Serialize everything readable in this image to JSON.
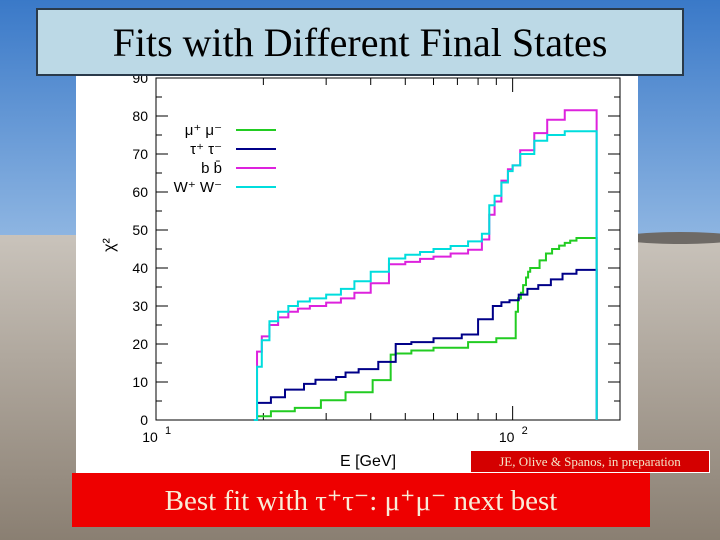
{
  "slide": {
    "title": "Fits with Different Final States",
    "credit": "JE, Olive & Spanos, in preparation",
    "caption": "Best fit with τ⁺τ⁻: μ⁺μ⁻ next best"
  },
  "colors": {
    "green": "#22cc22",
    "blue": "#000088",
    "magenta": "#dd22dd",
    "cyan": "#00dddd",
    "caption_bg": "#ee0000",
    "title_bg": "#bcd9e6"
  },
  "chart_data": {
    "type": "line",
    "xlabel": "E [GeV]",
    "ylabel": "χ²",
    "x_scale": "log",
    "xlim": [
      10,
      200
    ],
    "ylim": [
      0,
      90
    ],
    "x_tick_labels": [
      "10",
      "10"
    ],
    "x_tick_exponents": [
      "1",
      "2"
    ],
    "y_ticks": [
      0,
      10,
      20,
      30,
      40,
      50,
      60,
      70,
      80,
      90
    ],
    "legend_position": "top-left",
    "series": [
      {
        "name": "μ⁺ μ⁻",
        "color": "#22cc22",
        "x": [
          18.8,
          19.2,
          21.0,
          24.5,
          29.0,
          34.0,
          40.5,
          45.5,
          47.0,
          52.0,
          60.0,
          75.0,
          90.0,
          102.0,
          103.5,
          105.5,
          107.0,
          109.0,
          110.5,
          112.0,
          119.0,
          124.0,
          129.0,
          135.0,
          140.0,
          145.0,
          151.0,
          172.0
        ],
        "y": [
          0,
          1,
          2.3,
          3.2,
          5.2,
          7.3,
          10.5,
          17.2,
          17.5,
          18.3,
          19.0,
          20.5,
          21.5,
          28.5,
          32.0,
          33.5,
          35.5,
          37.5,
          39.0,
          40.0,
          42.0,
          43.8,
          45.0,
          45.9,
          46.6,
          47.2,
          47.9,
          0
        ]
      },
      {
        "name": "τ⁺ τ⁻",
        "color": "#000088",
        "x": [
          18.8,
          19.2,
          21.0,
          23.0,
          26.0,
          28.0,
          32.0,
          34.0,
          37.0,
          42.0,
          47.0,
          52.0,
          60.0,
          72.0,
          80.0,
          88.0,
          93.0,
          98.0,
          104.0,
          110.0,
          118.0,
          128.0,
          138.0,
          151.0,
          172.0
        ],
        "y": [
          0,
          4.5,
          6.0,
          8.0,
          9.5,
          10.6,
          11.3,
          12.5,
          13.4,
          15.3,
          20.0,
          20.5,
          21.5,
          22.5,
          26.5,
          30.0,
          31.0,
          31.5,
          33.0,
          34.5,
          35.5,
          37.0,
          38.5,
          39.5,
          0
        ]
      },
      {
        "name": "b b̄",
        "color": "#dd22dd",
        "x": [
          18.8,
          19.2,
          19.8,
          20.8,
          22.0,
          23.5,
          25.0,
          27.0,
          30.0,
          33.0,
          36.0,
          40.0,
          45.0,
          50.0,
          55.0,
          60.0,
          67.0,
          75.0,
          82.0,
          86.0,
          89.0,
          93.0,
          97.0,
          100.0,
          105.0,
          115.0,
          125.0,
          140.0,
          172.0
        ],
        "y": [
          0,
          18.0,
          22.0,
          25.0,
          27.0,
          28.5,
          29.3,
          30.0,
          30.9,
          32.0,
          33.5,
          36.0,
          41.0,
          41.6,
          42.4,
          43.0,
          43.8,
          44.8,
          47.5,
          54.0,
          57.5,
          63.0,
          66.0,
          67.0,
          71.0,
          75.5,
          79.0,
          81.5,
          0
        ]
      },
      {
        "name": "W⁺ W⁻",
        "color": "#00dddd",
        "x": [
          18.8,
          19.2,
          19.8,
          20.8,
          22.0,
          23.5,
          25.0,
          27.0,
          30.0,
          33.0,
          36.0,
          40.0,
          45.0,
          50.0,
          55.0,
          60.0,
          67.0,
          75.0,
          82.0,
          86.0,
          89.0,
          93.0,
          97.0,
          100.0,
          105.0,
          115.0,
          125.0,
          140.0,
          172.0
        ],
        "y": [
          0,
          14.0,
          21.0,
          26.0,
          28.5,
          30.0,
          31.2,
          32.0,
          33.0,
          34.5,
          36.5,
          39.0,
          42.5,
          43.5,
          44.2,
          45.0,
          45.8,
          47.0,
          49.0,
          56.5,
          59.0,
          62.5,
          65.5,
          67.0,
          70.0,
          73.5,
          75.0,
          76.0,
          0
        ]
      }
    ]
  }
}
